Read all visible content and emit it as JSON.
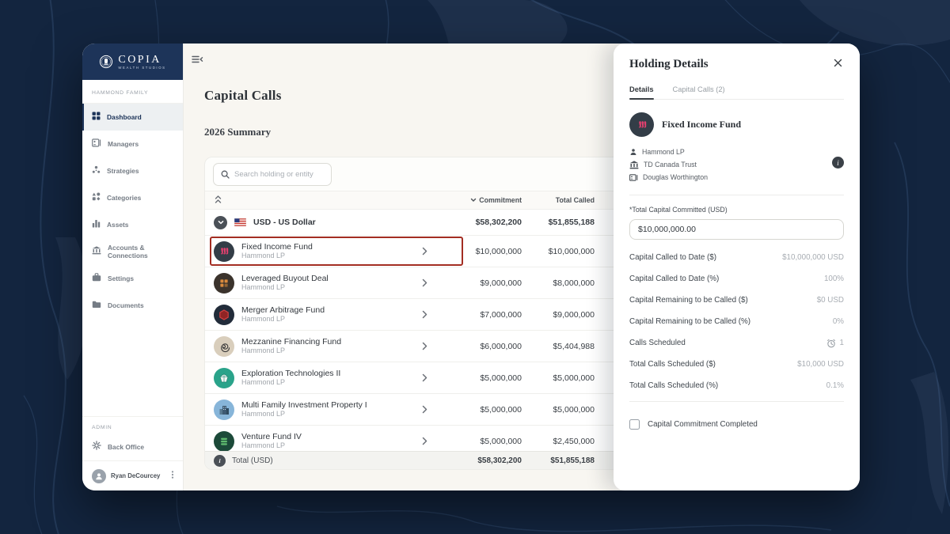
{
  "colors": {
    "navy": "#1d3459",
    "accent_pink": "#e3406f",
    "highlight_border": "#a32d22"
  },
  "sidebar": {
    "logo": {
      "name": "COPIA",
      "tagline": "WEALTH STUDIOS"
    },
    "family_label": "HAMMOND FAMILY",
    "items": [
      {
        "label": "Dashboard",
        "icon": "dashboard-icon",
        "active": true
      },
      {
        "label": "Managers",
        "icon": "managers-icon",
        "active": false
      },
      {
        "label": "Strategies",
        "icon": "strategies-icon",
        "active": false
      },
      {
        "label": "Categories",
        "icon": "categories-icon",
        "active": false
      },
      {
        "label": "Assets",
        "icon": "assets-icon",
        "active": false
      },
      {
        "label": "Accounts & Connections",
        "icon": "bank-icon",
        "active": false
      },
      {
        "label": "Settings",
        "icon": "briefcase-icon",
        "active": false
      },
      {
        "label": "Documents",
        "icon": "folder-icon",
        "active": false
      }
    ],
    "admin_label": "ADMIN",
    "admin_items": [
      {
        "label": "Back Office",
        "icon": "gear-icon"
      }
    ],
    "user": {
      "name": "Ryan DeCourcey"
    }
  },
  "main": {
    "title": "Capital Calls",
    "subtitle": "2026 Summary",
    "search_placeholder": "Search holding or entity",
    "table": {
      "columns": {
        "commitment": "Commitment",
        "total_called": "Total Called"
      },
      "group": {
        "label": "USD - US Dollar",
        "commitment": "$58,302,200",
        "total_called": "$51,855,188"
      },
      "rows": [
        {
          "name": "Fixed Income Fund",
          "entity": "Hammond LP",
          "commitment": "$10,000,000",
          "total_called": "$10,000,000",
          "highlighted": true,
          "icon": "fixed-income",
          "icon_bg": "#333d47"
        },
        {
          "name": "Leveraged Buyout Deal",
          "entity": "Hammond LP",
          "commitment": "$9,000,000",
          "total_called": "$8,000,000",
          "highlighted": false,
          "icon": "buyout",
          "icon_bg": "#3b332c"
        },
        {
          "name": "Merger Arbitrage Fund",
          "entity": "Hammond LP",
          "commitment": "$7,000,000",
          "total_called": "$9,000,000",
          "highlighted": false,
          "icon": "hexagon",
          "icon_bg": "#222c3a"
        },
        {
          "name": "Mezzanine Financing Fund",
          "entity": "Hammond LP",
          "commitment": "$6,000,000",
          "total_called": "$5,404,988",
          "highlighted": false,
          "icon": "spiral",
          "icon_bg": "#d9cebc"
        },
        {
          "name": "Exploration Technologies II",
          "entity": "Hammond LP",
          "commitment": "$5,000,000",
          "total_called": "$5,000,000",
          "highlighted": false,
          "icon": "gem",
          "icon_bg": "#2aa38a"
        },
        {
          "name": "Multi Family Investment Property I",
          "entity": "Hammond LP",
          "commitment": "$5,000,000",
          "total_called": "$5,000,000",
          "highlighted": false,
          "icon": "building",
          "icon_bg": "#87b5d9"
        },
        {
          "name": "Venture Fund IV",
          "entity": "Hammond LP",
          "commitment": "$5,000,000",
          "total_called": "$2,450,000",
          "highlighted": false,
          "icon": "stack",
          "icon_bg": "#1c4a39"
        }
      ],
      "total": {
        "label": "Total (USD)",
        "commitment": "$58,302,200",
        "total_called": "$51,855,188"
      }
    }
  },
  "panel": {
    "title": "Holding Details",
    "tabs": [
      {
        "label": "Details",
        "active": true
      },
      {
        "label": "Capital Calls (2)",
        "active": false
      }
    ],
    "fund": {
      "name": "Fixed Income Fund",
      "icon": "fixed-income",
      "icon_bg": "#333d47"
    },
    "entities": [
      {
        "text": "Hammond LP",
        "icon": "person-icon"
      },
      {
        "text": "TD Canada Trust",
        "icon": "bank-icon"
      },
      {
        "text": "Douglas Worthington",
        "icon": "card-icon"
      }
    ],
    "committed": {
      "label": "*Total Capital Committed (USD)",
      "value": "$10,000,000.00"
    },
    "stats": [
      {
        "label": "Capital Called to Date ($)",
        "value": "$10,000,000 USD"
      },
      {
        "label": "Capital Called to Date (%)",
        "value": "100%"
      },
      {
        "label": "Capital Remaining to be Called ($)",
        "value": "$0 USD"
      },
      {
        "label": "Capital Remaining to be Called (%)",
        "value": "0%"
      },
      {
        "label": "Calls Scheduled",
        "value": "1",
        "icon": "clock-icon"
      },
      {
        "label": "Total Calls Scheduled ($)",
        "value": "$10,000 USD"
      },
      {
        "label": "Total Calls Scheduled (%)",
        "value": "0.1%"
      }
    ],
    "checkbox_label": "Capital Commitment Completed"
  }
}
